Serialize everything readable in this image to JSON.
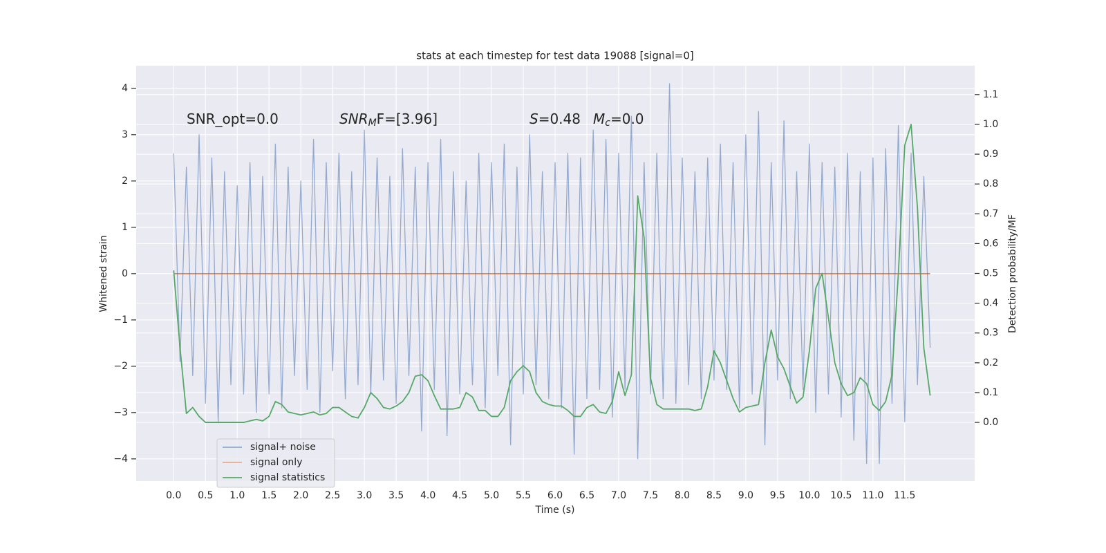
{
  "chart_data": {
    "type": "line",
    "title": "stats at each timestep for test data 19088 [signal=0]",
    "xlabel": "Time (s)",
    "ylabel": "Whitened strain",
    "y2label": "Detection probability/MF",
    "annotations": [
      [
        "SNR_opt=0.0"
      ],
      [
        "SNR",
        "M",
        "F=[3.96]"
      ],
      [
        "S",
        "=0.48"
      ],
      [
        "M",
        "c",
        "=0.0"
      ]
    ],
    "grid": true,
    "legend": "lower left",
    "xlim": [
      -0.59,
      12.6
    ],
    "ylim": [
      -4.48,
      4.49
    ],
    "y2lim": [
      -0.197,
      1.197
    ],
    "xticks": [
      {
        "value": 0,
        "label": "0.0"
      },
      {
        "value": 0.5,
        "label": "0.5"
      },
      {
        "value": 1,
        "label": "1.0"
      },
      {
        "value": 1.5,
        "label": "1.5"
      },
      {
        "value": 2,
        "label": "2.0"
      },
      {
        "value": 2.5,
        "label": "2.5"
      },
      {
        "value": 3,
        "label": "3.0"
      },
      {
        "value": 3.5,
        "label": "3.5"
      },
      {
        "value": 4,
        "label": "4.0"
      },
      {
        "value": 4.5,
        "label": "4.5"
      },
      {
        "value": 5,
        "label": "5.0"
      },
      {
        "value": 5.5,
        "label": "5.5"
      },
      {
        "value": 6,
        "label": "6.0"
      },
      {
        "value": 6.5,
        "label": "6.5"
      },
      {
        "value": 7,
        "label": "7.0"
      },
      {
        "value": 7.5,
        "label": "7.5"
      },
      {
        "value": 8,
        "label": "8.0"
      },
      {
        "value": 8.5,
        "label": "8.5"
      },
      {
        "value": 9,
        "label": "9.0"
      },
      {
        "value": 9.5,
        "label": "9.5"
      },
      {
        "value": 10,
        "label": "10.0"
      },
      {
        "value": 10.5,
        "label": "10.5"
      },
      {
        "value": 11,
        "label": "11.0"
      },
      {
        "value": 11.5,
        "label": "11.5"
      }
    ],
    "yticks": [
      {
        "value": -4,
        "label": "−4"
      },
      {
        "value": -3,
        "label": "−3"
      },
      {
        "value": -2,
        "label": "−2"
      },
      {
        "value": -1,
        "label": "−1"
      },
      0,
      1,
      2,
      3,
      4
    ],
    "y2ticks": [
      {
        "value": 0,
        "label": "0.0"
      },
      {
        "value": 0.1,
        "label": "0.1"
      },
      {
        "value": 0.2,
        "label": "0.2"
      },
      {
        "value": 0.3,
        "label": "0.3"
      },
      {
        "value": 0.4,
        "label": "0.4"
      },
      {
        "value": 0.5,
        "label": "0.5"
      },
      {
        "value": 0.6,
        "label": "0.6"
      },
      {
        "value": 0.7,
        "label": "0.7"
      },
      {
        "value": 0.8,
        "label": "0.8"
      },
      {
        "value": 0.9,
        "label": "0.9"
      },
      {
        "value": 1,
        "label": "1.0"
      },
      {
        "value": 1.1,
        "label": "1.1"
      }
    ],
    "x": [
      0,
      0.1,
      0.2,
      0.3,
      0.4,
      0.5,
      0.6,
      0.7,
      0.8,
      0.9,
      1,
      1.1,
      1.2,
      1.3,
      1.4,
      1.5,
      1.6,
      1.7,
      1.8,
      1.9,
      2,
      2.1,
      2.2,
      2.3,
      2.4,
      2.5,
      2.6,
      2.7,
      2.8,
      2.9,
      3,
      3.1,
      3.2,
      3.3,
      3.4,
      3.5,
      3.6,
      3.7,
      3.8,
      3.9,
      4,
      4.1,
      4.2,
      4.3,
      4.4,
      4.5,
      4.6,
      4.7,
      4.8,
      4.9,
      5,
      5.1,
      5.2,
      5.3,
      5.4,
      5.5,
      5.6,
      5.7,
      5.8,
      5.9,
      6,
      6.1,
      6.2,
      6.3,
      6.4,
      6.5,
      6.6,
      6.7,
      6.8,
      6.9,
      7,
      7.1,
      7.2,
      7.3,
      7.4,
      7.5,
      7.6,
      7.7,
      7.8,
      7.9,
      8,
      8.1,
      8.2,
      8.3,
      8.4,
      8.5,
      8.6,
      8.7,
      8.8,
      8.9,
      9,
      9.1,
      9.2,
      9.3,
      9.4,
      9.5,
      9.6,
      9.7,
      9.8,
      9.9,
      10,
      10.1,
      10.2,
      10.3,
      10.4,
      10.5,
      10.6,
      10.7,
      10.8,
      10.9,
      11,
      11.1,
      11.2,
      11.3,
      11.4,
      11.5,
      11.6,
      11.7,
      11.8,
      11.9
    ],
    "series": [
      {
        "name": "signal+ noise",
        "color": "#4c72b0",
        "values": [
          2.6,
          -1.9,
          2.3,
          -2.2,
          3.0,
          -2.8,
          2.5,
          -3.2,
          2.2,
          -2.4,
          1.9,
          -2.6,
          2.4,
          -3.0,
          2.1,
          -2.6,
          2.8,
          -2.9,
          2.3,
          -2.2,
          2.0,
          -2.5,
          2.9,
          -3.0,
          2.4,
          -2.1,
          2.6,
          -2.7,
          2.2,
          -2.4,
          3.1,
          -2.6,
          2.5,
          -2.3,
          2.1,
          -2.8,
          2.7,
          -2.2,
          2.3,
          -3.4,
          2.4,
          -2.5,
          2.9,
          -3.5,
          2.2,
          -2.6,
          2.0,
          -2.4,
          2.6,
          -2.9,
          2.4,
          -2.2,
          2.8,
          -3.7,
          2.3,
          -2.6,
          3.0,
          -2.4,
          2.2,
          -2.7,
          2.4,
          -2.9,
          2.6,
          -3.9,
          2.5,
          -2.7,
          3.1,
          -2.5,
          2.9,
          -3.1,
          2.6,
          -2.5,
          3.4,
          -4.0,
          2.4,
          -2.6,
          2.6,
          -2.7,
          4.1,
          -2.8,
          2.5,
          -2.4,
          2.2,
          -2.7,
          2.5,
          -2.3,
          2.8,
          -2.5,
          2.4,
          -2.9,
          3.0,
          -2.6,
          3.5,
          -3.7,
          2.4,
          -2.3,
          3.3,
          -2.7,
          2.2,
          -2.5,
          2.8,
          -3.0,
          2.4,
          -2.6,
          2.3,
          -3.1,
          2.6,
          -3.6,
          2.2,
          -4.1,
          2.5,
          -4.1,
          2.7,
          -2.8,
          3.2,
          -3.2,
          2.6,
          -2.4,
          2.1,
          -1.6
        ]
      },
      {
        "name": "signal only",
        "color": "#dd8452",
        "values": [
          0,
          0,
          0,
          0,
          0,
          0,
          0,
          0,
          0,
          0,
          0,
          0,
          0,
          0,
          0,
          0,
          0,
          0,
          0,
          0,
          0,
          0,
          0,
          0,
          0,
          0,
          0,
          0,
          0,
          0,
          0,
          0,
          0,
          0,
          0,
          0,
          0,
          0,
          0,
          0,
          0,
          0,
          0,
          0,
          0,
          0,
          0,
          0,
          0,
          0,
          0,
          0,
          0,
          0,
          0,
          0,
          0,
          0,
          0,
          0,
          0,
          0,
          0,
          0,
          0,
          0,
          0,
          0,
          0,
          0,
          0,
          0,
          0,
          0,
          0,
          0,
          0,
          0,
          0,
          0,
          0,
          0,
          0,
          0,
          0,
          0,
          0,
          0,
          0,
          0,
          0,
          0,
          0,
          0,
          0,
          0,
          0,
          0,
          0,
          0,
          0,
          0,
          0,
          0,
          0,
          0,
          0,
          0,
          0,
          0,
          0,
          0,
          0,
          0,
          0,
          0,
          0,
          0,
          0,
          0
        ]
      },
      {
        "name": "signal statistics",
        "color": "#55a868",
        "axis": "y2",
        "values": [
          0.51,
          0.25,
          0.03,
          0.05,
          0.02,
          0.0,
          0.0,
          0.0,
          0.0,
          0.0,
          0.0,
          0.0,
          0.005,
          0.01,
          0.005,
          0.02,
          0.07,
          0.06,
          0.035,
          0.03,
          0.025,
          0.03,
          0.035,
          0.025,
          0.03,
          0.05,
          0.05,
          0.035,
          0.02,
          0.015,
          0.05,
          0.1,
          0.08,
          0.05,
          0.045,
          0.055,
          0.07,
          0.1,
          0.155,
          0.16,
          0.14,
          0.09,
          0.045,
          0.045,
          0.045,
          0.05,
          0.1,
          0.085,
          0.04,
          0.04,
          0.02,
          0.02,
          0.05,
          0.14,
          0.17,
          0.19,
          0.17,
          0.1,
          0.07,
          0.06,
          0.055,
          0.055,
          0.04,
          0.02,
          0.02,
          0.05,
          0.06,
          0.035,
          0.03,
          0.07,
          0.17,
          0.09,
          0.16,
          0.76,
          0.62,
          0.15,
          0.06,
          0.045,
          0.045,
          0.045,
          0.045,
          0.045,
          0.04,
          0.045,
          0.12,
          0.24,
          0.2,
          0.14,
          0.08,
          0.035,
          0.05,
          0.055,
          0.06,
          0.2,
          0.31,
          0.22,
          0.18,
          0.12,
          0.065,
          0.085,
          0.24,
          0.45,
          0.5,
          0.35,
          0.2,
          0.13,
          0.09,
          0.1,
          0.15,
          0.13,
          0.06,
          0.04,
          0.07,
          0.16,
          0.5,
          0.93,
          1.0,
          0.72,
          0.25,
          0.09
        ]
      }
    ]
  }
}
